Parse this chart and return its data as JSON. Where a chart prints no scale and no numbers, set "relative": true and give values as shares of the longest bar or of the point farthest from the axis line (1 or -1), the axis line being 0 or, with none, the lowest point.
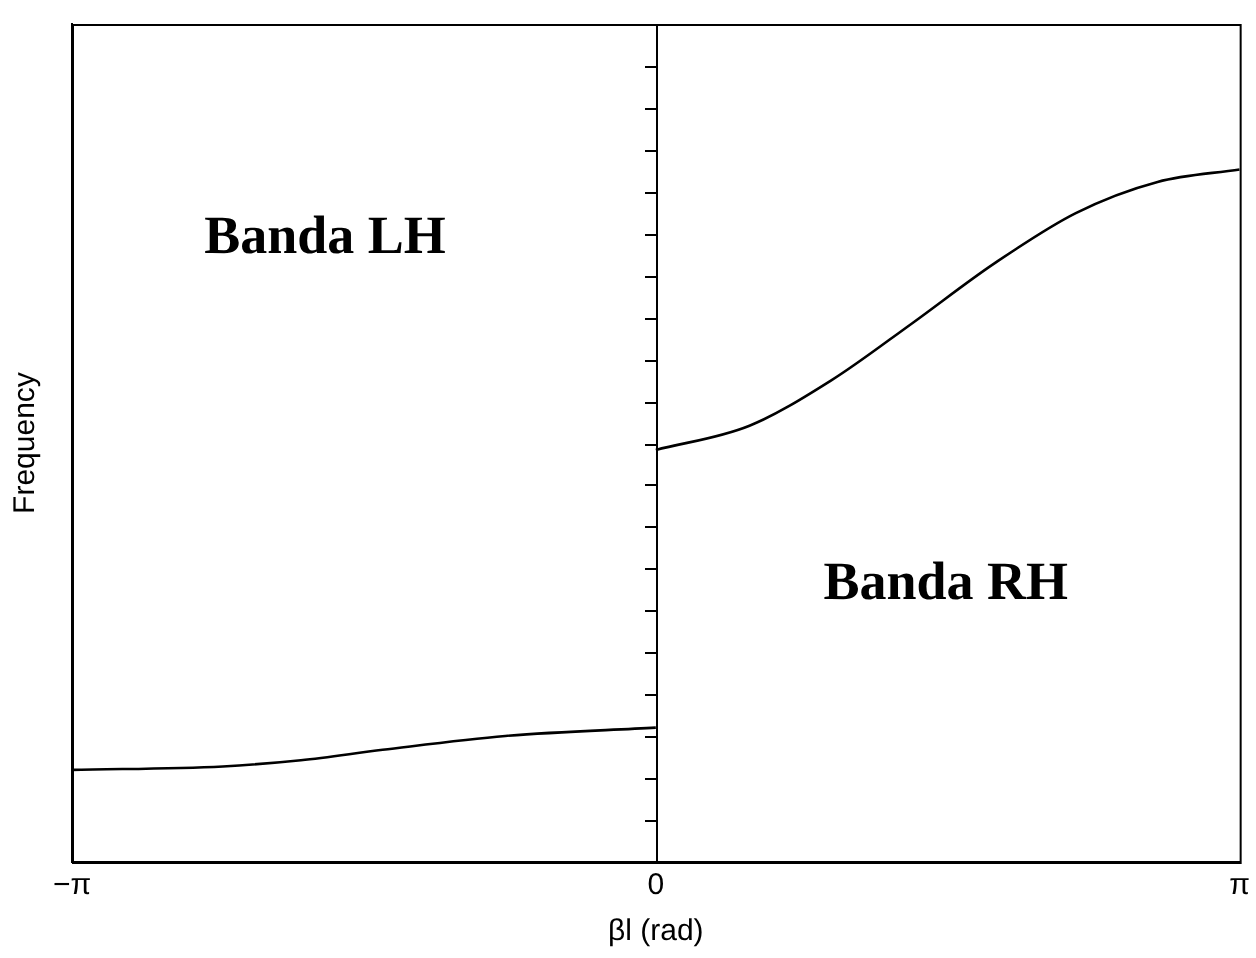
{
  "chart_data": {
    "type": "line",
    "xlabel": "βl (rad)",
    "ylabel": "Frequency",
    "relative": true,
    "xlim": [
      -3.1416,
      3.1416
    ],
    "xticks": [
      {
        "value": -3.1416,
        "label": "−π"
      },
      0,
      {
        "value": 3.1416,
        "label": "π"
      }
    ],
    "series": [
      {
        "color": "#000000",
        "x": [
          -3.1416,
          -2.33,
          -1.91,
          -1.47,
          -0.81,
          0
        ],
        "values": [
          0.133,
          0.138,
          0.147,
          0.162,
          0.182,
          0.194
        ]
      },
      {
        "color": "#000000",
        "x": [
          0,
          0.504,
          0.942,
          1.38,
          1.82,
          2.26,
          2.7,
          3.1416
        ],
        "values": [
          0.595,
          0.63,
          0.695,
          0.778,
          0.864,
          0.937,
          0.982,
          1
        ]
      }
    ],
    "ref_lines": [
      {
        "axis": "x",
        "value": 0,
        "color": "#000000"
      }
    ],
    "annotations": [
      "Banda LH",
      "Banda RH"
    ],
    "tick_labels": "x",
    "grid": false,
    "legend": false,
    "marker": "none",
    "line_style": "solid"
  }
}
